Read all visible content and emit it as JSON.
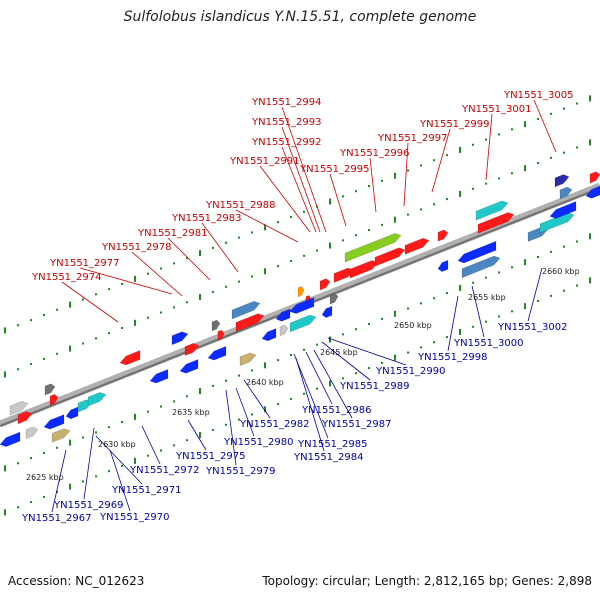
{
  "title": "Sulfolobus islandicus Y.N.15.51, complete genome",
  "footer": {
    "accession": "Accession: NC_012623",
    "summary": "Topology: circular; Length: 2,812,165 bp; Genes: 2,898"
  },
  "colors": {
    "forward_label": "#cc0000",
    "reverse_label": "#0000aa",
    "backbone": "#9a9a9a",
    "dot": "#228822"
  },
  "scale_labels": [
    "2625 kbp",
    "2630 kbp",
    "2635 kbp",
    "2640 kbp",
    "2645 kbp",
    "2650 kbp",
    "2655 kbp",
    "2660 kbp"
  ],
  "top_labels": [
    "YN1551_2974",
    "YN1551_2977",
    "YN1551_2978",
    "YN1551_2981",
    "YN1551_2983",
    "YN1551_2988",
    "YN1551_2991",
    "YN1551_2995",
    "YN1551_2996",
    "YN1551_2992",
    "YN1551_2993",
    "YN1551_2994",
    "YN1551_2997",
    "YN1551_2999",
    "YN1551_3001",
    "YN1551_3005"
  ],
  "bottom_labels": [
    "YN1551_2967",
    "YN1551_2969",
    "YN1551_2970",
    "YN1551_2971",
    "YN1551_2972",
    "YN1551_2975",
    "YN1551_2979",
    "YN1551_2980",
    "YN1551_2982",
    "YN1551_2984",
    "YN1551_2985",
    "YN1551_2987",
    "YN1551_2986",
    "YN1551_2989",
    "YN1551_2990",
    "YN1551_2998",
    "YN1551_3000",
    "YN1551_3002"
  ]
}
